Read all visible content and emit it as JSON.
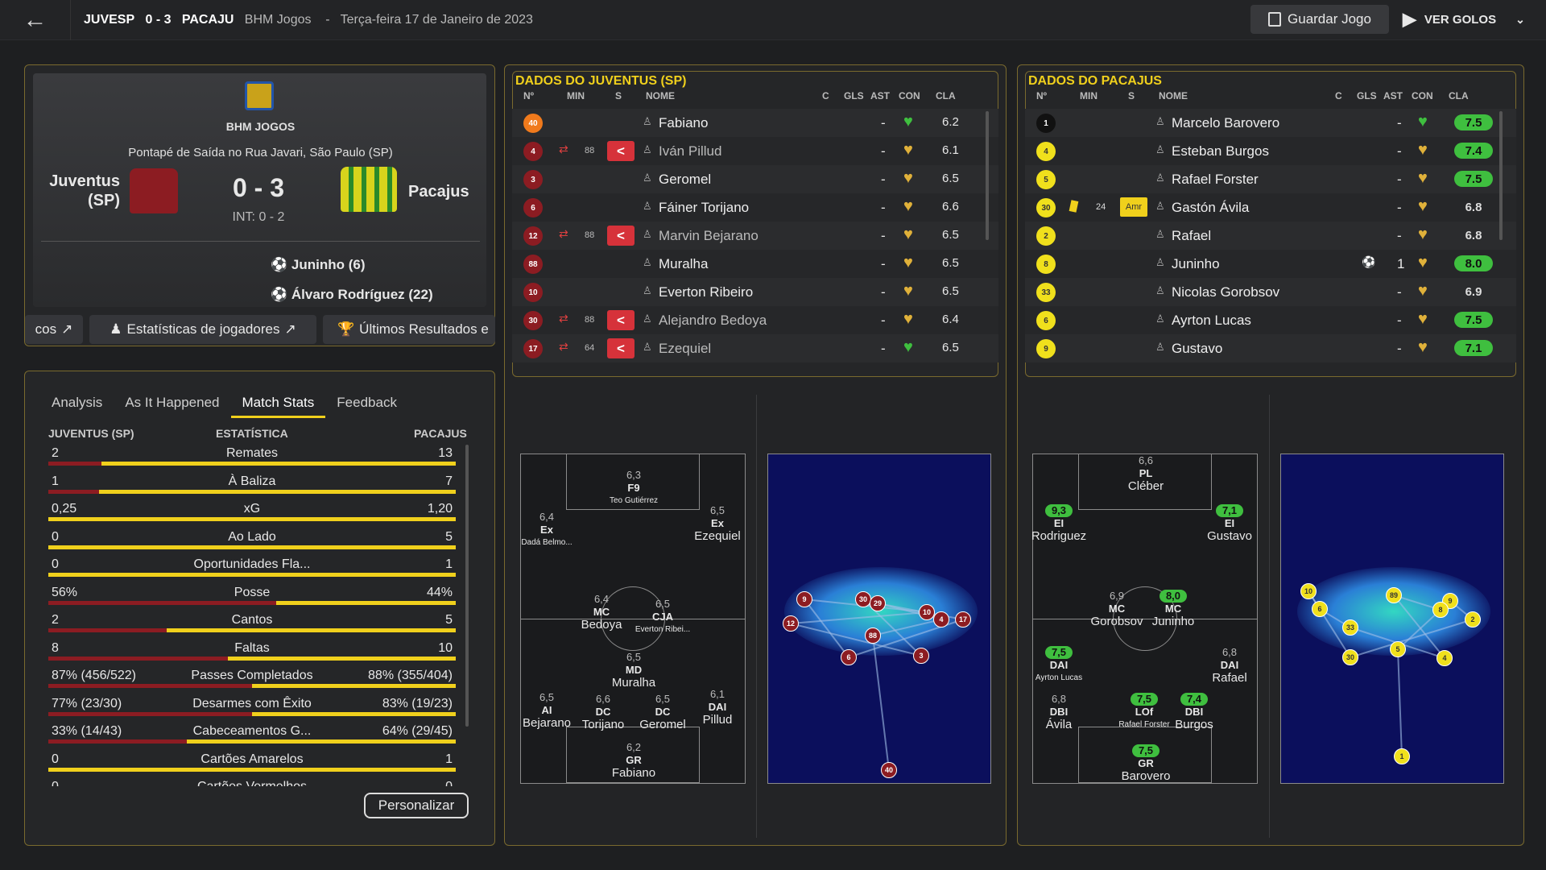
{
  "topbar": {
    "home": "JUVESP",
    "score": "0 - 3",
    "away": "PACAJU",
    "competition": "BHM Jogos",
    "sep": "-",
    "date": "Terça-feira 17 de Janeiro de 2023",
    "save": "Guardar Jogo",
    "goals": "VER GOLOS"
  },
  "match": {
    "competition": "BHM JOGOS",
    "venue": "Pontapé de Saída no Rua Javari, São Paulo (SP)",
    "home": "Juventus (SP)",
    "home_l1": "Juventus",
    "home_l2": "(SP)",
    "away": "Pacajus",
    "score": "0 - 3",
    "ht": "INT: 0 - 2",
    "scorers": [
      "Juninho (6)",
      "Álvaro Rodríguez (22)"
    ],
    "link1": "cos",
    "link2": "Estatísticas de jogadores",
    "link3": "Últimos Resultados e"
  },
  "tabs": [
    "Analysis",
    "As It Happened",
    "Match Stats",
    "Feedback"
  ],
  "stats": {
    "home": "JUVENTUS (SP)",
    "label": "ESTATÍSTICA",
    "away": "PACAJUS",
    "customize": "Personalizar",
    "rows": [
      {
        "l": "2",
        "c": "Remates",
        "r": "13",
        "f": 0.13
      },
      {
        "l": "1",
        "c": "À Baliza",
        "r": "7",
        "f": 0.125
      },
      {
        "l": "0,25",
        "c": "xG",
        "r": "1,20",
        "f": 0.0
      },
      {
        "l": "0",
        "c": "Ao Lado",
        "r": "5",
        "f": 0.0
      },
      {
        "l": "0",
        "c": "Oportunidades Fla...",
        "r": "1",
        "f": 0.0
      },
      {
        "l": "56%",
        "c": "Posse",
        "r": "44%",
        "f": 0.56
      },
      {
        "l": "2",
        "c": "Cantos",
        "r": "5",
        "f": 0.29
      },
      {
        "l": "8",
        "c": "Faltas",
        "r": "10",
        "f": 0.44
      },
      {
        "l": "87% (456/522)",
        "c": "Passes Completados",
        "r": "88% (355/404)",
        "f": 0.5
      },
      {
        "l": "77% (23/30)",
        "c": "Desarmes com Êxito",
        "r": "83% (19/23)",
        "f": 0.5
      },
      {
        "l": "33% (14/43)",
        "c": "Cabeceamentos G...",
        "r": "64% (29/45)",
        "f": 0.34
      },
      {
        "l": "0",
        "c": "Cartões Amarelos",
        "r": "1",
        "f": 0.0
      },
      {
        "l": "0",
        "c": "Cartões Vermelhos",
        "r": "0",
        "f": 0.0
      }
    ]
  },
  "home_team": {
    "title": "DADOS DO JUVENTUS (SP)",
    "cols": [
      "Nº",
      "MIN",
      "S",
      "NOME",
      "C",
      "GLS",
      "AST",
      "CON",
      "CLA"
    ],
    "players": [
      {
        "n": "40",
        "min": "",
        "sub": false,
        "name": "Fabiano",
        "gls": "-",
        "cla": "6.2",
        "green": true
      },
      {
        "n": "4",
        "min": "88",
        "sub": true,
        "name": "Iván Pillud",
        "gls": "-",
        "cla": "6.1",
        "green": false
      },
      {
        "n": "3",
        "min": "",
        "sub": false,
        "name": "Geromel",
        "gls": "-",
        "cla": "6.5",
        "green": false
      },
      {
        "n": "6",
        "min": "",
        "sub": false,
        "name": "Fáiner Torijano",
        "gls": "-",
        "cla": "6.6",
        "green": false
      },
      {
        "n": "12",
        "min": "88",
        "sub": true,
        "name": "Marvin Bejarano",
        "gls": "-",
        "cla": "6.5",
        "green": false
      },
      {
        "n": "88",
        "min": "",
        "sub": false,
        "name": "Muralha",
        "gls": "-",
        "cla": "6.5",
        "green": false
      },
      {
        "n": "10",
        "min": "",
        "sub": false,
        "name": "Everton Ribeiro",
        "gls": "-",
        "cla": "6.5",
        "green": false
      },
      {
        "n": "30",
        "min": "88",
        "sub": true,
        "name": "Alejandro Bedoya",
        "gls": "-",
        "cla": "6.4",
        "green": false
      },
      {
        "n": "17",
        "min": "64",
        "sub": true,
        "name": "Ezequiel",
        "gls": "-",
        "cla": "6.5",
        "green": true
      }
    ]
  },
  "away_team": {
    "title": "DADOS DO PACAJUS",
    "cols": [
      "Nº",
      "MIN",
      "S",
      "NOME",
      "C",
      "GLS",
      "AST",
      "CON",
      "CLA"
    ],
    "players": [
      {
        "n": "1",
        "min": "",
        "name": "Marcelo Barovero",
        "gls": "-",
        "cla": "7.5",
        "hi": true,
        "card": false,
        "sub": ""
      },
      {
        "n": "4",
        "min": "",
        "name": "Esteban Burgos",
        "gls": "-",
        "cla": "7.4",
        "hi": true,
        "card": false,
        "sub": ""
      },
      {
        "n": "5",
        "min": "",
        "name": "Rafael Forster",
        "gls": "-",
        "cla": "7.5",
        "hi": true,
        "card": false,
        "sub": ""
      },
      {
        "n": "30",
        "min": "24",
        "name": "Gastón Ávila",
        "gls": "-",
        "cla": "6.8",
        "hi": false,
        "card": true,
        "sub": "Amr"
      },
      {
        "n": "2",
        "min": "",
        "name": "Rafael",
        "gls": "-",
        "cla": "6.8",
        "hi": false,
        "card": false,
        "sub": ""
      },
      {
        "n": "8",
        "min": "",
        "name": "Juninho",
        "gls": "1",
        "cla": "8.0",
        "hi": true,
        "card": false,
        "sub": ""
      },
      {
        "n": "33",
        "min": "",
        "name": "Nicolas Gorobsov",
        "gls": "-",
        "cla": "6.9",
        "hi": false,
        "card": false,
        "sub": ""
      },
      {
        "n": "6",
        "min": "",
        "name": "Ayrton Lucas",
        "gls": "-",
        "cla": "7.5",
        "hi": true,
        "card": false,
        "sub": ""
      },
      {
        "n": "9",
        "min": "",
        "name": "Gustavo",
        "gls": "-",
        "cla": "7.1",
        "hi": true,
        "card": false,
        "sub": ""
      }
    ]
  },
  "home_form": [
    {
      "r": "6,3",
      "p": "F9",
      "n": "Teo Gutiérrez",
      "small": true
    },
    {
      "r": "6,4",
      "p": "Ex",
      "n": "Dadá Belmo...",
      "small": true
    },
    {
      "r": "6,5",
      "p": "Ex",
      "n": "Ezequiel",
      "small": false
    },
    {
      "r": "6,4",
      "p": "MC",
      "n": "Bedoya",
      "small": false
    },
    {
      "r": "6,5",
      "p": "CJA",
      "n": "Everton Ribei...",
      "small": true
    },
    {
      "r": "6,5",
      "p": "MD",
      "n": "Muralha",
      "small": false
    },
    {
      "r": "6,5",
      "p": "AI",
      "n": "Bejarano",
      "small": false
    },
    {
      "r": "6,6",
      "p": "DC",
      "n": "Torijano",
      "small": false
    },
    {
      "r": "6,5",
      "p": "DC",
      "n": "Geromel",
      "small": false
    },
    {
      "r": "6,1",
      "p": "DAI",
      "n": "Pillud",
      "small": false
    },
    {
      "r": "6,2",
      "p": "GR",
      "n": "Fabiano",
      "small": false
    }
  ],
  "away_form": [
    {
      "r": "6,6",
      "p": "PL",
      "n": "Cléber",
      "small": false,
      "g": false
    },
    {
      "r": "9,3",
      "p": "EI",
      "n": "Rodriguez",
      "small": false,
      "g": true
    },
    {
      "r": "7,1",
      "p": "EI",
      "n": "Gustavo",
      "small": false,
      "g": true
    },
    {
      "r": "6,9",
      "p": "MC",
      "n": "Gorobsov",
      "small": false,
      "g": false
    },
    {
      "r": "8,0",
      "p": "MC",
      "n": "Juninho",
      "small": false,
      "g": true
    },
    {
      "r": "7,5",
      "p": "DAI",
      "n": "Ayrton Lucas",
      "small": true,
      "g": true
    },
    {
      "r": "6,8",
      "p": "DAI",
      "n": "Rafael",
      "small": false,
      "g": false
    },
    {
      "r": "6,8",
      "p": "DBI",
      "n": "Ávila",
      "small": false,
      "g": false
    },
    {
      "r": "7,5",
      "p": "LOf",
      "n": "Rafael Forster",
      "small": true,
      "g": true
    },
    {
      "r": "7,4",
      "p": "DBI",
      "n": "Burgos",
      "small": false,
      "g": true
    },
    {
      "r": "7,5",
      "p": "GR",
      "n": "Barovero",
      "small": false,
      "g": true
    }
  ],
  "home_map": [
    "9",
    "30",
    "29",
    "10",
    "4",
    "17",
    "12",
    "88",
    "6",
    "3",
    "40"
  ],
  "away_map": [
    "10",
    "89",
    "9",
    "6",
    "8",
    "2",
    "33",
    "5",
    "30",
    "4",
    "1"
  ],
  "colors": {
    "gold": "#f0d01c",
    "maroon": "#8c1c22",
    "green": "#3fbf3f",
    "accent_border": "#7a6a2e"
  }
}
